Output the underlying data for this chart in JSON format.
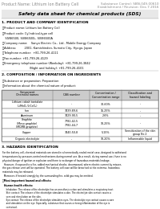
{
  "header_left": "Product Name: Lithium Ion Battery Cell",
  "header_right": "Substance Control: SBN-049-00610\nEstablishment / Revision: Dec.7.2016",
  "title": "Safety data sheet for chemical products (SDS)",
  "section1_title": "1. PRODUCT AND COMPANY IDENTIFICATION",
  "section1_lines": [
    "・Product name: Lithium Ion Battery Cell",
    "・Product code: Cylindrical-type cell",
    "   SIV86500, SIV86500L, SIV86500A",
    "・Company name:    Sanyo Electric Co., Ltd., Mobile Energy Company",
    "・Address:         2001, Kamishinden, Sumoto City, Hyogo, Japan",
    "・Telephone number:  +81-799-26-4111",
    "・Fax number: +81-799-26-4129",
    "・Emergency telephone number (Weekday): +81-799-26-3842",
    "                              (Night and holiday): +81-799-26-4101"
  ],
  "section2_title": "2. COMPOSITION / INFORMATION ON INGREDIENTS",
  "section2_lines": [
    "・Substance or preparation: Preparation",
    "・Information about the chemical nature of product:"
  ],
  "table_headers": [
    "Chemical names",
    "CAS number",
    "Concentration /\nConcentration range",
    "Classification and\nhazard labeling"
  ],
  "col_header": "Component",
  "table_rows": [
    [
      "Lithium cobalt tantalate\n(LiMnO₂/LiCoO₂)",
      "-",
      "30-60%",
      "-"
    ],
    [
      "Iron",
      "7439-89-6",
      "15-25%",
      "-"
    ],
    [
      "Aluminum",
      "7429-90-5",
      "2-6%",
      "-"
    ],
    [
      "Graphite\n(Meso graphite)\n(MCMB graphite)",
      "7782-42-5\n7782-44-7",
      "10-25%",
      "-"
    ],
    [
      "Copper",
      "7440-50-8",
      "5-15%",
      "Sensitization of the skin\ngroup No.2"
    ],
    [
      "Organic electrolyte",
      "-",
      "10-20%",
      "Inflammable liquid"
    ]
  ],
  "section3_title": "3. HAZARDS IDENTIFICATION",
  "section3_text_lines": [
    "For the battery cell, chemical materials are stored in a hermetically sealed metal case, designed to withstand",
    "temperatures by pressure-control mechanisms during normal use. As a result, during normal use, there is no",
    "physical danger of ignition or explosion and there is no danger of hazardous materials leakage.",
    "  However, if exposed to a fire, added mechanical shocks, decomposed, where electric current by misuse,",
    "the gas release vent will be operated. The battery cell case will be breached at the extreme, hazardous",
    "materials may be released.",
    "  Moreover, if heated strongly by the surrounding fire, solid gas may be emitted."
  ],
  "section3_most": "・Most important hazard and effects:",
  "section3_human": "Human health effects:",
  "section3_human_lines": [
    "   Inhalation: The release of the electrolyte has an anesthesia action and stimulates a respiratory tract.",
    "   Skin contact: The release of the electrolyte stimulates a skin. The electrolyte skin contact causes a",
    "   sore and stimulation on the skin.",
    "   Eye contact: The release of the electrolyte stimulates eyes. The electrolyte eye contact causes a sore",
    "   and stimulation on the eye. Especially, substance that causes a strong inflammation of the eye is",
    "   contained.",
    "   Environmental effects: Since a battery cell remains in the environment, do not throw out it into the",
    "   environment."
  ],
  "section3_specific": "・Specific hazards:",
  "section3_specific_lines": [
    "   If the electrolyte contacts with water, it will generate detrimental hydrogen fluoride.",
    "   Since the lead-antimony electrolyte is inflammable liquid, do not bring close to fire."
  ],
  "bg_color": "#ffffff",
  "text_color": "#000000",
  "gray_text": "#888888",
  "title_bg": "#e8e8e8",
  "table_border_color": "#777777",
  "table_header_bg": "#cccccc"
}
